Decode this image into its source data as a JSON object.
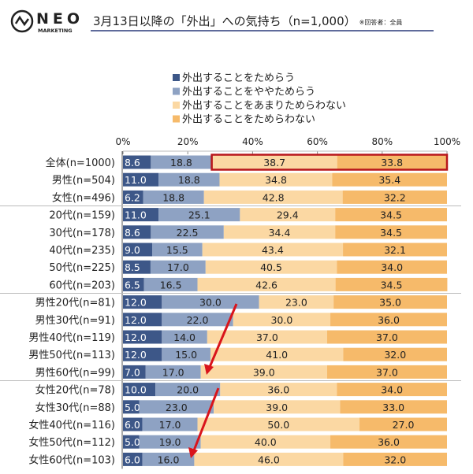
{
  "header": {
    "logo_text": "NEO",
    "logo_sub": "MARKETING",
    "title": "3月13日以降の「外出」への気持ち（n=1,000）",
    "note": "※回答者：全員"
  },
  "colors": {
    "series": [
      "#3d5788",
      "#8ea2c3",
      "#fbd8a3",
      "#f6ba6a"
    ],
    "highlight": "#b8161b",
    "arrow": "#d9141b",
    "title_underline": "#2a3a7a"
  },
  "chart_data": {
    "type": "bar",
    "orientation": "horizontal",
    "stacked": true,
    "xlim": [
      0,
      100
    ],
    "x_ticks": [
      "0%",
      "20%",
      "40%",
      "60%",
      "80%",
      "100%"
    ],
    "legend_position": "top",
    "categories": [
      "全体(n=1000)",
      "男性(n=504)",
      "女性(n=496)",
      "20代(n=159)",
      "30代(n=178)",
      "40代(n=235)",
      "50代(n=225)",
      "60代(n=203)",
      "男性20代(n=81)",
      "男性30代(n=91)",
      "男性40代(n=119)",
      "男性50代(n=113)",
      "男性60代(n=99)",
      "女性20代(n=78)",
      "女性30代(n=88)",
      "女性40代(n=116)",
      "女性50代(n=112)",
      "女性60代(n=103)"
    ],
    "series": [
      {
        "name": "外出することをためらう",
        "values": [
          "8.6",
          "11.0",
          "6.2",
          "11.0",
          "8.6",
          "9.0",
          "8.5",
          "6.5",
          "12.0",
          "12.0",
          "12.0",
          "12.0",
          "7.0",
          "10.0",
          "5.0",
          "6.0",
          "5.0",
          "6.0"
        ]
      },
      {
        "name": "外出することをややためらう",
        "values": [
          "18.8",
          "18.8",
          "18.8",
          "25.1",
          "22.5",
          "15.5",
          "17.0",
          "16.5",
          "30.0",
          "22.0",
          "14.0",
          "15.0",
          "17.0",
          "20.0",
          "23.0",
          "17.0",
          "19.0",
          "16.0"
        ]
      },
      {
        "name": "外出することをあまりためらわない",
        "values": [
          "38.7",
          "34.8",
          "42.8",
          "29.4",
          "34.4",
          "43.4",
          "40.5",
          "42.6",
          "23.0",
          "30.0",
          "37.0",
          "41.0",
          "39.0",
          "36.0",
          "39.0",
          "50.0",
          "40.0",
          "46.0"
        ]
      },
      {
        "name": "外出することをためらわない",
        "values": [
          "33.8",
          "35.4",
          "32.2",
          "34.5",
          "34.5",
          "32.1",
          "34.0",
          "34.5",
          "35.0",
          "36.0",
          "37.0",
          "32.0",
          "37.0",
          "34.0",
          "33.0",
          "27.0",
          "36.0",
          "32.0"
        ]
      }
    ],
    "group_separators_after": [
      2,
      7,
      12
    ],
    "highlighted_row": 0,
    "highlighted_series": [
      2,
      3
    ]
  }
}
